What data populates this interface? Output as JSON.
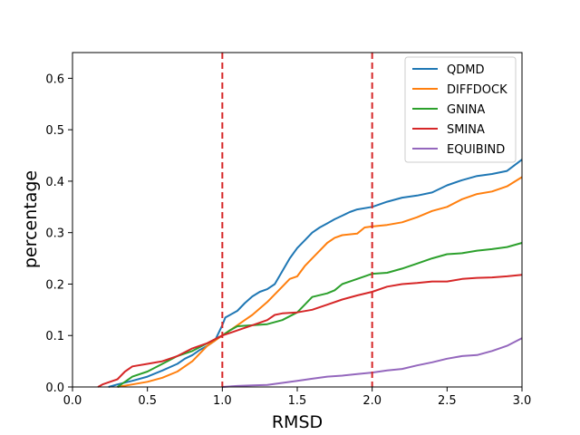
{
  "chart_data": {
    "type": "line",
    "title": "",
    "xlabel": "RMSD",
    "ylabel": "percentage",
    "xlim": [
      0.0,
      3.0
    ],
    "ylim": [
      0.0,
      0.65
    ],
    "xticks": [
      "0.0",
      "0.5",
      "1.0",
      "1.5",
      "2.0",
      "2.5",
      "3.0"
    ],
    "yticks": [
      "0.0",
      "0.1",
      "0.2",
      "0.3",
      "0.4",
      "0.5",
      "0.6"
    ],
    "grid": false,
    "legend_position": "top-right",
    "vlines": [
      {
        "x": 1.0,
        "color": "#d62728",
        "style": "dashed"
      },
      {
        "x": 2.0,
        "color": "#d62728",
        "style": "dashed"
      }
    ],
    "series": [
      {
        "name": "QDMD",
        "color": "#1f77b4",
        "points": [
          [
            0.24,
            0.0
          ],
          [
            0.3,
            0.005
          ],
          [
            0.4,
            0.012
          ],
          [
            0.5,
            0.02
          ],
          [
            0.6,
            0.032
          ],
          [
            0.7,
            0.045
          ],
          [
            0.75,
            0.055
          ],
          [
            0.8,
            0.062
          ],
          [
            0.85,
            0.072
          ],
          [
            0.9,
            0.08
          ],
          [
            0.95,
            0.09
          ],
          [
            1.0,
            0.12
          ],
          [
            1.02,
            0.135
          ],
          [
            1.1,
            0.148
          ],
          [
            1.15,
            0.163
          ],
          [
            1.2,
            0.176
          ],
          [
            1.25,
            0.185
          ],
          [
            1.3,
            0.19
          ],
          [
            1.35,
            0.2
          ],
          [
            1.4,
            0.225
          ],
          [
            1.45,
            0.25
          ],
          [
            1.5,
            0.27
          ],
          [
            1.55,
            0.285
          ],
          [
            1.6,
            0.3
          ],
          [
            1.65,
            0.31
          ],
          [
            1.7,
            0.318
          ],
          [
            1.75,
            0.326
          ],
          [
            1.8,
            0.333
          ],
          [
            1.85,
            0.34
          ],
          [
            1.9,
            0.345
          ],
          [
            2.0,
            0.35
          ],
          [
            2.1,
            0.36
          ],
          [
            2.2,
            0.368
          ],
          [
            2.3,
            0.372
          ],
          [
            2.4,
            0.378
          ],
          [
            2.5,
            0.392
          ],
          [
            2.6,
            0.402
          ],
          [
            2.7,
            0.41
          ],
          [
            2.8,
            0.414
          ],
          [
            2.9,
            0.42
          ],
          [
            3.0,
            0.442
          ]
        ]
      },
      {
        "name": "DIFFDOCK",
        "color": "#ff7f0e",
        "points": [
          [
            0.3,
            0.0
          ],
          [
            0.4,
            0.005
          ],
          [
            0.5,
            0.01
          ],
          [
            0.6,
            0.018
          ],
          [
            0.7,
            0.03
          ],
          [
            0.8,
            0.05
          ],
          [
            0.85,
            0.065
          ],
          [
            0.9,
            0.08
          ],
          [
            0.95,
            0.09
          ],
          [
            1.0,
            0.1
          ],
          [
            1.05,
            0.11
          ],
          [
            1.1,
            0.12
          ],
          [
            1.15,
            0.13
          ],
          [
            1.2,
            0.14
          ],
          [
            1.3,
            0.165
          ],
          [
            1.35,
            0.18
          ],
          [
            1.4,
            0.195
          ],
          [
            1.45,
            0.21
          ],
          [
            1.5,
            0.215
          ],
          [
            1.55,
            0.235
          ],
          [
            1.6,
            0.25
          ],
          [
            1.65,
            0.265
          ],
          [
            1.7,
            0.28
          ],
          [
            1.75,
            0.29
          ],
          [
            1.8,
            0.295
          ],
          [
            1.9,
            0.298
          ],
          [
            1.95,
            0.31
          ],
          [
            2.0,
            0.312
          ],
          [
            2.1,
            0.315
          ],
          [
            2.2,
            0.32
          ],
          [
            2.3,
            0.33
          ],
          [
            2.4,
            0.342
          ],
          [
            2.5,
            0.35
          ],
          [
            2.6,
            0.365
          ],
          [
            2.7,
            0.375
          ],
          [
            2.8,
            0.38
          ],
          [
            2.9,
            0.39
          ],
          [
            3.0,
            0.408
          ]
        ]
      },
      {
        "name": "GNINA",
        "color": "#2ca02c",
        "points": [
          [
            0.3,
            0.0
          ],
          [
            0.35,
            0.01
          ],
          [
            0.4,
            0.02
          ],
          [
            0.5,
            0.03
          ],
          [
            0.6,
            0.045
          ],
          [
            0.7,
            0.06
          ],
          [
            0.8,
            0.07
          ],
          [
            0.9,
            0.085
          ],
          [
            1.0,
            0.1
          ],
          [
            1.05,
            0.11
          ],
          [
            1.1,
            0.118
          ],
          [
            1.2,
            0.12
          ],
          [
            1.3,
            0.122
          ],
          [
            1.4,
            0.13
          ],
          [
            1.5,
            0.145
          ],
          [
            1.55,
            0.16
          ],
          [
            1.6,
            0.175
          ],
          [
            1.7,
            0.182
          ],
          [
            1.75,
            0.188
          ],
          [
            1.8,
            0.2
          ],
          [
            1.9,
            0.21
          ],
          [
            2.0,
            0.22
          ],
          [
            2.1,
            0.222
          ],
          [
            2.2,
            0.23
          ],
          [
            2.3,
            0.24
          ],
          [
            2.4,
            0.25
          ],
          [
            2.5,
            0.258
          ],
          [
            2.6,
            0.26
          ],
          [
            2.7,
            0.265
          ],
          [
            2.8,
            0.268
          ],
          [
            2.9,
            0.272
          ],
          [
            3.0,
            0.28
          ]
        ]
      },
      {
        "name": "SMINA",
        "color": "#d62728",
        "points": [
          [
            0.17,
            0.0
          ],
          [
            0.2,
            0.005
          ],
          [
            0.3,
            0.015
          ],
          [
            0.35,
            0.03
          ],
          [
            0.4,
            0.04
          ],
          [
            0.5,
            0.045
          ],
          [
            0.6,
            0.05
          ],
          [
            0.7,
            0.06
          ],
          [
            0.8,
            0.075
          ],
          [
            0.9,
            0.085
          ],
          [
            1.0,
            0.1
          ],
          [
            1.05,
            0.105
          ],
          [
            1.1,
            0.11
          ],
          [
            1.2,
            0.12
          ],
          [
            1.3,
            0.13
          ],
          [
            1.35,
            0.14
          ],
          [
            1.4,
            0.143
          ],
          [
            1.5,
            0.145
          ],
          [
            1.6,
            0.15
          ],
          [
            1.7,
            0.16
          ],
          [
            1.8,
            0.17
          ],
          [
            1.9,
            0.178
          ],
          [
            2.0,
            0.185
          ],
          [
            2.1,
            0.195
          ],
          [
            2.2,
            0.2
          ],
          [
            2.3,
            0.202
          ],
          [
            2.4,
            0.205
          ],
          [
            2.5,
            0.205
          ],
          [
            2.6,
            0.21
          ],
          [
            2.7,
            0.212
          ],
          [
            2.8,
            0.213
          ],
          [
            2.9,
            0.215
          ],
          [
            3.0,
            0.218
          ]
        ]
      },
      {
        "name": "EQUIBIND",
        "color": "#9467bd",
        "points": [
          [
            1.0,
            0.0
          ],
          [
            1.1,
            0.002
          ],
          [
            1.2,
            0.003
          ],
          [
            1.3,
            0.004
          ],
          [
            1.4,
            0.008
          ],
          [
            1.5,
            0.012
          ],
          [
            1.6,
            0.016
          ],
          [
            1.7,
            0.02
          ],
          [
            1.8,
            0.022
          ],
          [
            1.9,
            0.025
          ],
          [
            2.0,
            0.028
          ],
          [
            2.1,
            0.032
          ],
          [
            2.2,
            0.035
          ],
          [
            2.3,
            0.042
          ],
          [
            2.4,
            0.048
          ],
          [
            2.5,
            0.055
          ],
          [
            2.6,
            0.06
          ],
          [
            2.7,
            0.062
          ],
          [
            2.8,
            0.07
          ],
          [
            2.9,
            0.08
          ],
          [
            3.0,
            0.095
          ]
        ]
      }
    ]
  }
}
